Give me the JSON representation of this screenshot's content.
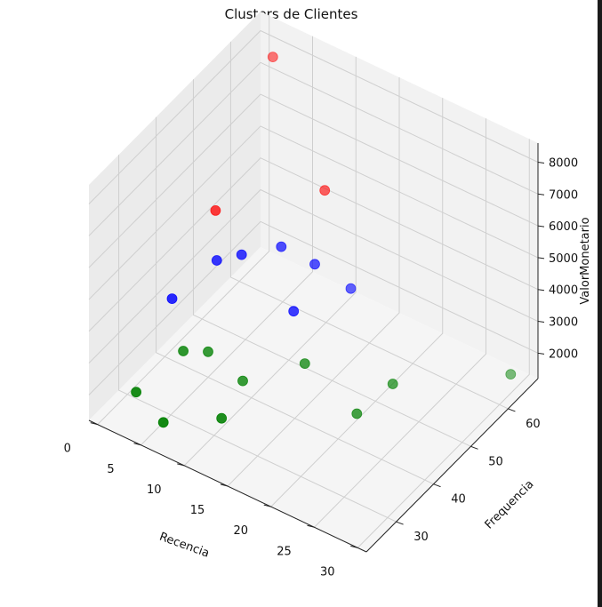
{
  "chart_data": {
    "type": "scatter",
    "title": "Clusters de Clientes",
    "xlabel": "Recencia",
    "ylabel": "Frequencia",
    "zlabel": "ValorMonetario",
    "xticks": [
      0,
      5,
      10,
      15,
      20,
      25,
      30
    ],
    "yticks": [
      30,
      40,
      50,
      60
    ],
    "zticks": [
      2000,
      3000,
      4000,
      5000,
      6000,
      7000,
      8000
    ],
    "xlim": [
      -1,
      31
    ],
    "ylim": [
      22,
      68
    ],
    "zlim": [
      1200,
      8600
    ],
    "grid": true,
    "series": [
      {
        "color": "#ff0000",
        "points": [
          {
            "x": 3,
            "y": 62,
            "z": 8400
          },
          {
            "x": 5,
            "y": 42,
            "z": 6200
          },
          {
            "x": 12,
            "y": 55,
            "z": 6200
          }
        ]
      },
      {
        "color": "#0000ff",
        "points": [
          {
            "x": 3,
            "y": 35,
            "z": 4000
          },
          {
            "x": 6,
            "y": 40,
            "z": 5000
          },
          {
            "x": 8,
            "y": 42,
            "z": 5200
          },
          {
            "x": 10,
            "y": 48,
            "z": 5000
          },
          {
            "x": 13,
            "y": 50,
            "z": 4600
          },
          {
            "x": 15,
            "y": 55,
            "z": 3500
          },
          {
            "x": 14,
            "y": 42,
            "z": 4200
          }
        ]
      },
      {
        "color": "#008000",
        "points": [
          {
            "x": 3,
            "y": 38,
            "z": 2000
          },
          {
            "x": 5,
            "y": 40,
            "z": 2000
          },
          {
            "x": 1,
            "y": 30,
            "z": 1400
          },
          {
            "x": 5,
            "y": 28,
            "z": 1200
          },
          {
            "x": 9,
            "y": 40,
            "z": 1600
          },
          {
            "x": 10,
            "y": 32,
            "z": 1500
          },
          {
            "x": 14,
            "y": 45,
            "z": 2200
          },
          {
            "x": 20,
            "y": 45,
            "z": 1400
          },
          {
            "x": 22,
            "y": 50,
            "z": 2000
          },
          {
            "x": 30,
            "y": 63,
            "z": 1800
          }
        ]
      }
    ]
  }
}
